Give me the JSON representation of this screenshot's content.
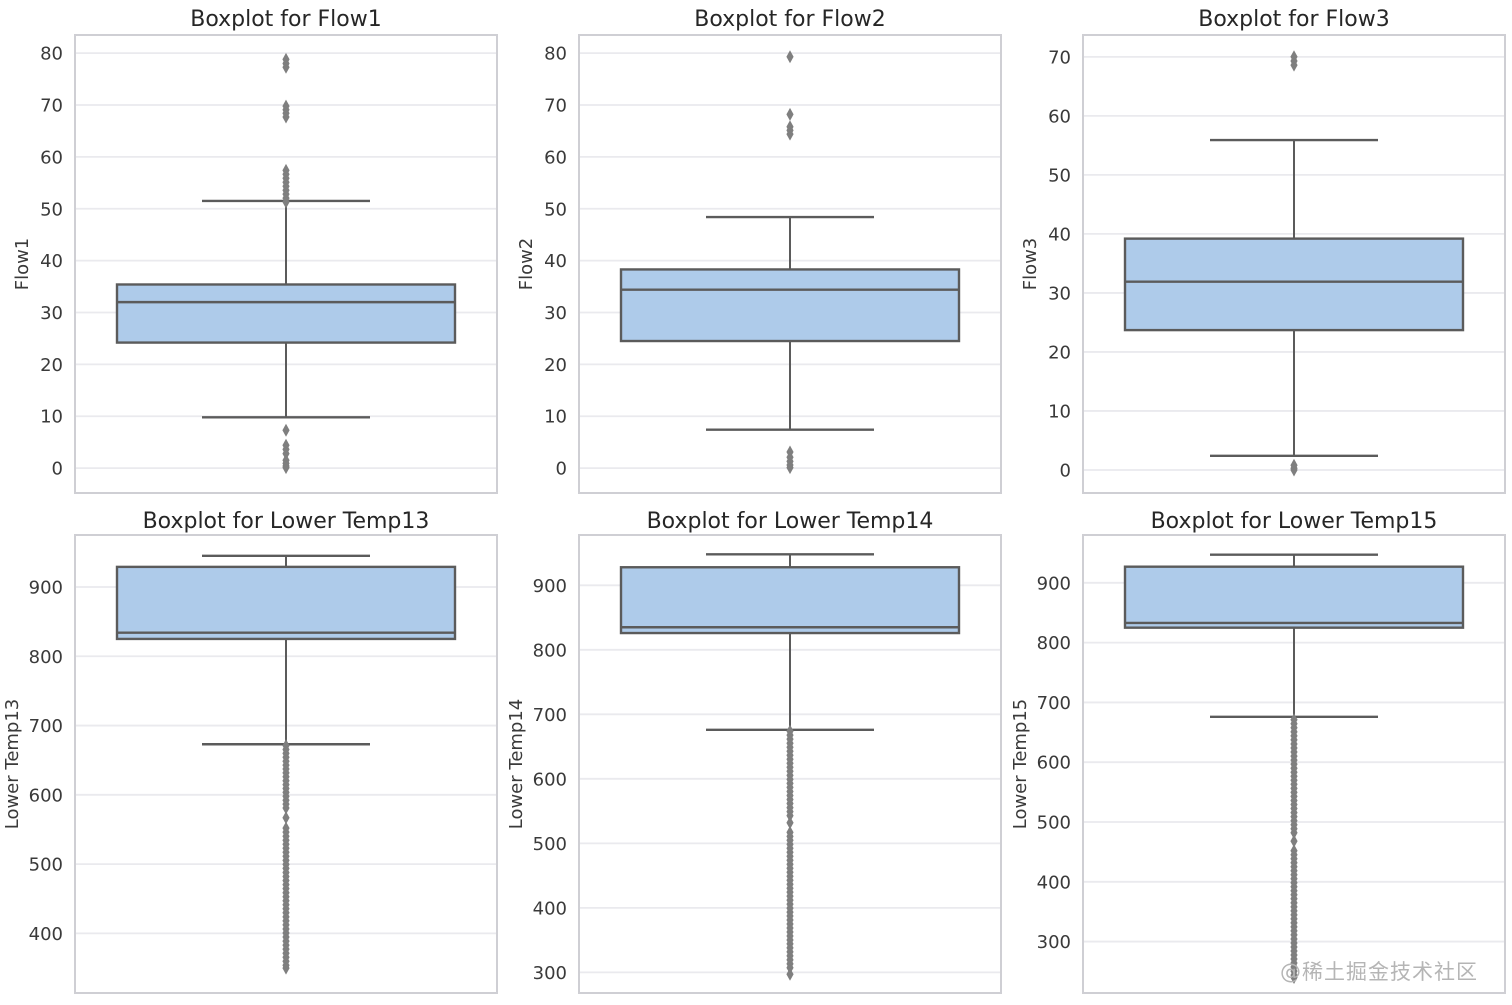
{
  "watermark": {
    "text": "@稀土掘金技术社区"
  },
  "chart_data": {
    "type": "boxplot",
    "layout": {
      "rows": 2,
      "cols": 3,
      "grid": true,
      "orientation": "vertical",
      "legend": "none"
    },
    "style": {
      "box_fill": "#aecbea",
      "box_edge": "#5b5b5b",
      "whisker_color": "#5b5b5b",
      "outlier_color": "#7f7f7f",
      "grid_color": "#eaeaee",
      "spine_color": "#cfcfd4",
      "title_color": "#262626",
      "tick_color": "#3a3a3a",
      "watermark_color": "#b5b5b5",
      "background": "#ffffff"
    },
    "plots": [
      {
        "title": "Boxplot for Flow1",
        "ylabel": "Flow1",
        "yticks": [
          0,
          10,
          20,
          30,
          40,
          50,
          60,
          70,
          80
        ],
        "ylim": [
          -4.8,
          83.5
        ],
        "stats": {
          "q1": 24.2,
          "median": 32.0,
          "q3": 35.4,
          "whisker_low": 9.8,
          "whisker_high": 51.5
        },
        "outliers": [
          77.3,
          78.0,
          78.8,
          67.7,
          68.4,
          69.1,
          69.8,
          7.3,
          4.4,
          3.6,
          2.8,
          1.5,
          0.9,
          0.4,
          0.1
        ],
        "outlier_runs": [
          {
            "min": 51.3,
            "max": 57.4
          }
        ]
      },
      {
        "title": "Boxplot for Flow2",
        "ylabel": "Flow2",
        "yticks": [
          0,
          10,
          20,
          30,
          40,
          50,
          60,
          70,
          80
        ],
        "ylim": [
          -4.8,
          83.5
        ],
        "stats": {
          "q1": 24.5,
          "median": 34.4,
          "q3": 38.3,
          "whisker_low": 7.4,
          "whisker_high": 48.4
        },
        "outliers": [
          79.3,
          68.2,
          65.8,
          65.1,
          64.4,
          3.1,
          2.1,
          1.3,
          0.6,
          0.1
        ],
        "outlier_runs": []
      },
      {
        "title": "Boxplot for Flow3",
        "ylabel": "Flow3",
        "yticks": [
          0,
          10,
          20,
          30,
          40,
          50,
          60,
          70
        ],
        "ylim": [
          -3.9,
          73.7
        ],
        "stats": {
          "q1": 23.7,
          "median": 31.9,
          "q3": 39.2,
          "whisker_low": 2.4,
          "whisker_high": 55.9
        },
        "outliers": [
          68.6,
          69.3,
          70.0,
          0.8,
          0.3,
          0.0
        ],
        "outlier_runs": []
      },
      {
        "title": "Boxplot for Lower Temp13",
        "ylabel": "Lower Temp13",
        "yticks": [
          400,
          500,
          600,
          700,
          800,
          900
        ],
        "ylim": [
          314,
          975
        ],
        "stats": {
          "q1": 825,
          "median": 834,
          "q3": 929,
          "whisker_low": 673,
          "whisker_high": 945
        },
        "outliers": [
          567,
          350
        ],
        "outlier_runs": [
          {
            "min": 581,
            "max": 671
          },
          {
            "min": 354,
            "max": 552
          }
        ]
      },
      {
        "title": "Boxplot for Lower Temp14",
        "ylabel": "Lower Temp14",
        "yticks": [
          300,
          400,
          500,
          600,
          700,
          800,
          900
        ],
        "ylim": [
          268,
          978
        ],
        "stats": {
          "q1": 826,
          "median": 835,
          "q3": 928,
          "whisker_low": 676,
          "whisker_high": 948
        },
        "outliers": [
          532,
          297
        ],
        "outlier_runs": [
          {
            "min": 543,
            "max": 674
          },
          {
            "min": 307,
            "max": 517
          }
        ]
      },
      {
        "title": "Boxplot for Lower Temp15",
        "ylabel": "Lower Temp15",
        "yticks": [
          300,
          400,
          500,
          600,
          700,
          800,
          900
        ],
        "ylim": [
          214,
          980
        ],
        "stats": {
          "q1": 825,
          "median": 833,
          "q3": 927,
          "whisker_low": 676,
          "whisker_high": 947
        },
        "outliers": [
          468,
          240
        ],
        "outlier_runs": [
          {
            "min": 482,
            "max": 671
          },
          {
            "min": 244,
            "max": 452
          }
        ]
      }
    ]
  }
}
